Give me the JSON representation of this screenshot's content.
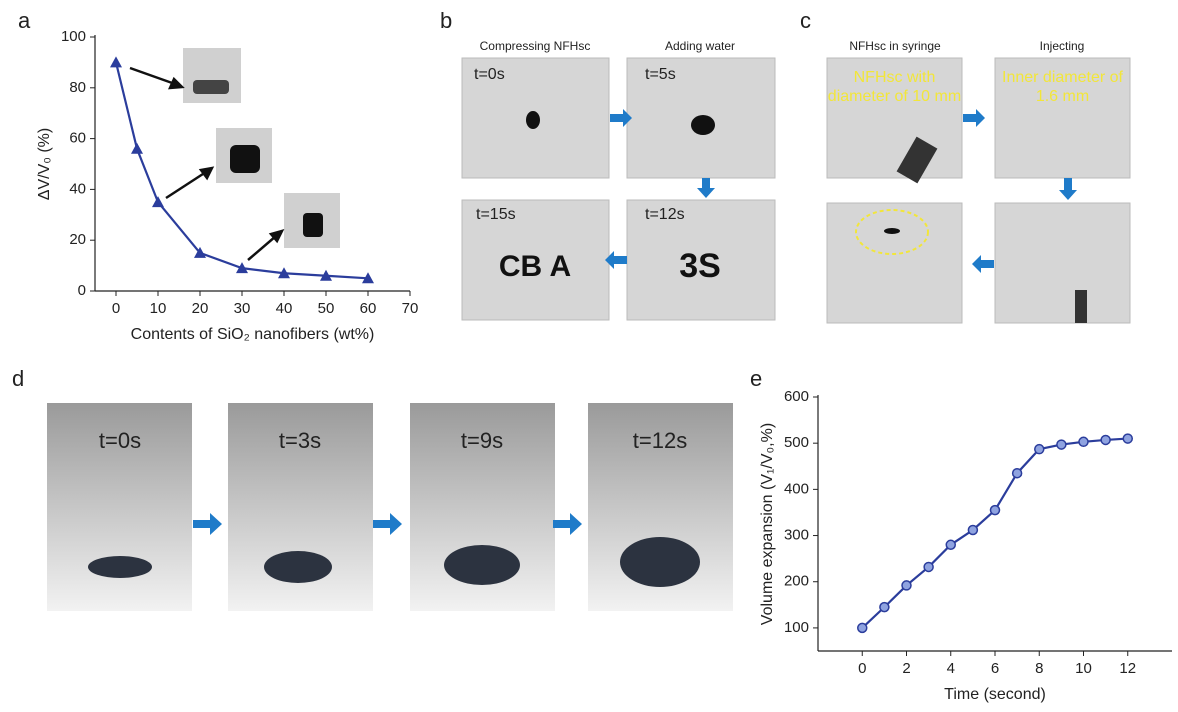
{
  "chart_data": [
    {
      "type": "line",
      "panel": "a",
      "marker": "triangle",
      "color": "#2b3d9c",
      "x_label": "Contents of SiO₂ nanofibers (wt%)",
      "y_label": "ΔV/V₀ (%)",
      "x": [
        0,
        5,
        10,
        20,
        30,
        40,
        50,
        60
      ],
      "values": [
        90,
        56,
        35,
        15,
        9,
        7,
        6,
        5
      ],
      "xlim": [
        -5,
        70
      ],
      "xticks": [
        0,
        10,
        20,
        30,
        40,
        50,
        60,
        70
      ],
      "ylim": [
        0,
        100
      ],
      "yticks": [
        0,
        20,
        40,
        60,
        80,
        100
      ]
    },
    {
      "type": "line",
      "panel": "e",
      "marker": "circle",
      "color": "#2b3d9c",
      "x_label": "Time (second)",
      "y_label": "Volume expansion (V₁/V₀,%)",
      "x": [
        0,
        1,
        2,
        3,
        4,
        5,
        6,
        7,
        8,
        9,
        10,
        11,
        12
      ],
      "values": [
        100,
        145,
        192,
        232,
        280,
        312,
        355,
        435,
        487,
        497,
        503,
        507,
        510
      ],
      "xlim": [
        -2,
        14
      ],
      "xticks": [
        0,
        2,
        4,
        6,
        8,
        10,
        12
      ],
      "ylim": [
        50,
        600
      ],
      "yticks": [
        100,
        200,
        300,
        400,
        500,
        600
      ]
    }
  ],
  "panels": {
    "b": {
      "captions": [
        "Compressing NFHsc",
        "Adding water"
      ],
      "times": [
        "t=0s",
        "t=5s",
        "t=12s",
        "t=15s"
      ]
    },
    "c": {
      "captions": [
        "NFHsc in syringe",
        "Injecting"
      ],
      "notes": [
        "NFHsc with diameter of 10 mm",
        "Inner diameter of 1.6 mm"
      ]
    },
    "d": {
      "label": "d",
      "times": [
        "t=0s",
        "t=3s",
        "t=9s",
        "t=12s"
      ]
    }
  }
}
